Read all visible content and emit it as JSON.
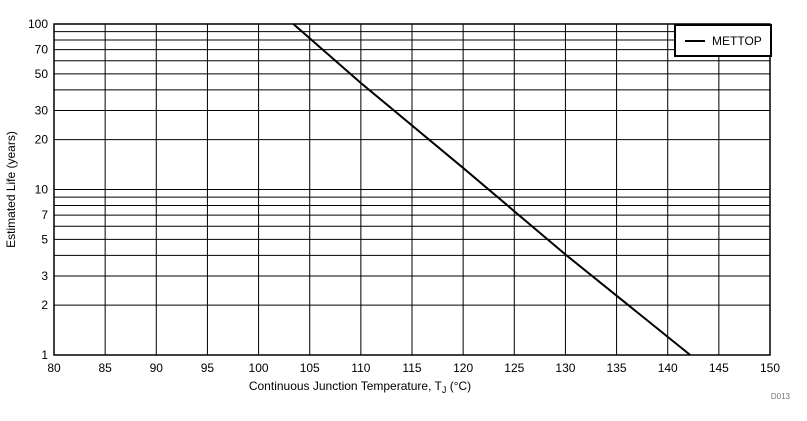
{
  "chart_data": {
    "type": "line",
    "title": "",
    "xlabel_main": "Continuous Junction Temperature, T",
    "xlabel_sub": "J",
    "xlabel_unit": " (°C)",
    "ylabel": "Estimated Life (years)",
    "xlim": [
      80,
      150
    ],
    "ylim": [
      1,
      100
    ],
    "yscale": "log",
    "grid": true,
    "legend_position": "top-right",
    "x_ticks": [
      "80",
      "85",
      "90",
      "95",
      "100",
      "105",
      "110",
      "115",
      "120",
      "125",
      "130",
      "135",
      "140",
      "145",
      "150"
    ],
    "y_ticks": [
      {
        "value": 1,
        "label": "1"
      },
      {
        "value": 2,
        "label": "2"
      },
      {
        "value": 3,
        "label": "3"
      },
      {
        "value": 5,
        "label": "5"
      },
      {
        "value": 7,
        "label": "7"
      },
      {
        "value": 10,
        "label": "10"
      },
      {
        "value": 20,
        "label": "20"
      },
      {
        "value": 30,
        "label": "30"
      },
      {
        "value": 50,
        "label": "50"
      },
      {
        "value": 70,
        "label": "70"
      },
      {
        "value": 100,
        "label": "100"
      }
    ],
    "y_gridlines": [
      1,
      2,
      3,
      4,
      5,
      6,
      7,
      8,
      9,
      10,
      20,
      30,
      40,
      50,
      60,
      70,
      80,
      90,
      100
    ],
    "series": [
      {
        "name": "METTOP",
        "color": "#000000",
        "x": [
          103.4,
          110,
          120,
          130,
          142.2
        ],
        "y": [
          100,
          44,
          13.5,
          4.05,
          1
        ]
      }
    ],
    "figure_id": "D013"
  }
}
